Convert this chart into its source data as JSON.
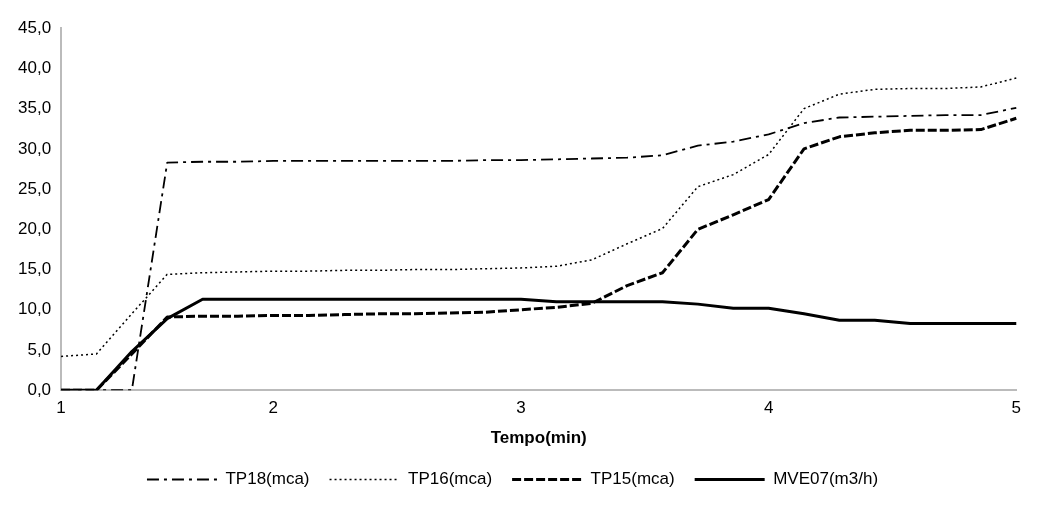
{
  "chart_data": {
    "type": "line",
    "xlabel": "Tempo(min)",
    "legend": "bottom",
    "grid": false,
    "marker": "none",
    "categories": [
      "1",
      null,
      null,
      null,
      null,
      null,
      "2",
      null,
      null,
      null,
      null,
      null,
      null,
      "3",
      null,
      null,
      null,
      null,
      null,
      null,
      "4",
      null,
      null,
      null,
      null,
      null,
      null,
      "5"
    ],
    "ylim": [
      0,
      45
    ],
    "yticks": [
      {
        "value": 0,
        "label": "0,0"
      },
      {
        "value": 5,
        "label": "5,0"
      },
      {
        "value": 10,
        "label": "10,0"
      },
      {
        "value": 15,
        "label": "15,0"
      },
      {
        "value": 20,
        "label": "20,0"
      },
      {
        "value": 25,
        "label": "25,0"
      },
      {
        "value": 30,
        "label": "30,0"
      },
      {
        "value": 35,
        "label": "35,0"
      },
      {
        "value": 40,
        "label": "40,0"
      },
      {
        "value": 45,
        "label": "45,0"
      }
    ],
    "series": [
      {
        "name": "TP18(mca)",
        "color": "#000000",
        "line_style": "dashdot",
        "values": [
          0,
          0,
          0,
          28.3,
          28.4,
          28.4,
          28.5,
          28.5,
          28.5,
          28.5,
          28.5,
          28.5,
          28.6,
          28.6,
          28.7,
          28.8,
          28.9,
          29.2,
          30.4,
          30.9,
          31.8,
          33.2,
          33.9,
          34.0,
          34.1,
          34.2,
          34.2,
          35.1
        ]
      },
      {
        "name": "TP16(mca)",
        "color": "#000000",
        "line_style": "dotted",
        "values": [
          4.2,
          4.5,
          9.5,
          14.4,
          14.6,
          14.7,
          14.8,
          14.8,
          14.9,
          14.9,
          15.0,
          15.0,
          15.1,
          15.2,
          15.4,
          16.2,
          18.2,
          20.1,
          25.3,
          26.8,
          29.3,
          35.0,
          36.8,
          37.4,
          37.5,
          37.5,
          37.7,
          38.8
        ]
      },
      {
        "name": "TP15(mca)",
        "color": "#000000",
        "line_style": "dashed",
        "values": [
          0,
          0,
          4.5,
          9.1,
          9.2,
          9.2,
          9.3,
          9.3,
          9.4,
          9.5,
          9.5,
          9.6,
          9.7,
          10.0,
          10.3,
          10.8,
          13.0,
          14.6,
          20.0,
          21.8,
          23.7,
          30.0,
          31.5,
          32.0,
          32.3,
          32.3,
          32.4,
          33.8
        ]
      },
      {
        "name": "MVE07(m3/h)",
        "color": "#000000",
        "line_style": "solid",
        "values": [
          0,
          0,
          4.8,
          8.9,
          11.3,
          11.3,
          11.3,
          11.3,
          11.3,
          11.3,
          11.3,
          11.3,
          11.3,
          11.3,
          11.0,
          11.0,
          11.0,
          11.0,
          10.7,
          10.2,
          10.2,
          9.5,
          8.7,
          8.7,
          8.3,
          8.3,
          8.3,
          8.3
        ]
      }
    ]
  }
}
